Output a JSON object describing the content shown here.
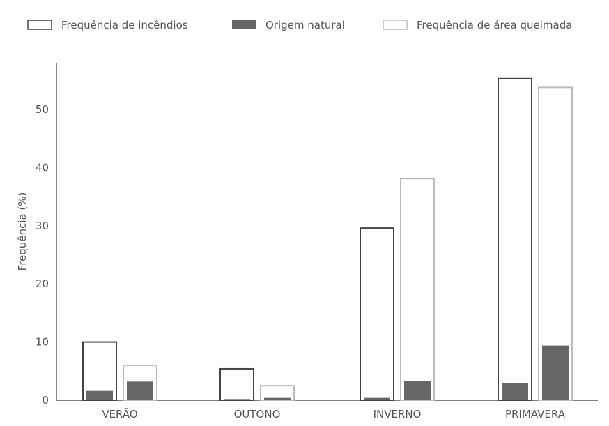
{
  "chart_data": {
    "type": "bar",
    "title": "",
    "xlabel": "",
    "ylabel": "Frequência (%)",
    "ylim": [
      0,
      58
    ],
    "yticks": [
      0,
      10,
      20,
      30,
      40,
      50
    ],
    "grid": false,
    "legend_position": "top",
    "categories": [
      "VERÃO",
      "OUTONO",
      "INVERNO",
      "PRIMAVERA"
    ],
    "series": [
      {
        "name": "Frequência de incêndios",
        "values": [
          10.0,
          5.4,
          29.6,
          55.3
        ],
        "style": "outline",
        "color": "#444444"
      },
      {
        "name": "Frequência de área queimada",
        "values": [
          6.0,
          2.5,
          38.1,
          53.8
        ],
        "style": "outline",
        "color": "#bbbbbb"
      }
    ],
    "overlay_series": [
      {
        "name": "Origem natural",
        "values": [
          1.6,
          0.2,
          0.4,
          3.0
        ],
        "on": "Frequência de incêndios",
        "style": "filled",
        "color": "#666666"
      },
      {
        "name": "Origem natural",
        "values": [
          3.2,
          0.4,
          3.3,
          9.4
        ],
        "on": "Frequência de área queimada",
        "style": "filled",
        "color": "#666666"
      }
    ],
    "legend": [
      {
        "label": "Frequência de incêndios",
        "style": "outline",
        "color": "#444444"
      },
      {
        "label": "Origem natural",
        "style": "filled",
        "color": "#666666"
      },
      {
        "label": "Frequência de área queimada",
        "style": "outline",
        "color": "#bbbbbb"
      }
    ]
  }
}
